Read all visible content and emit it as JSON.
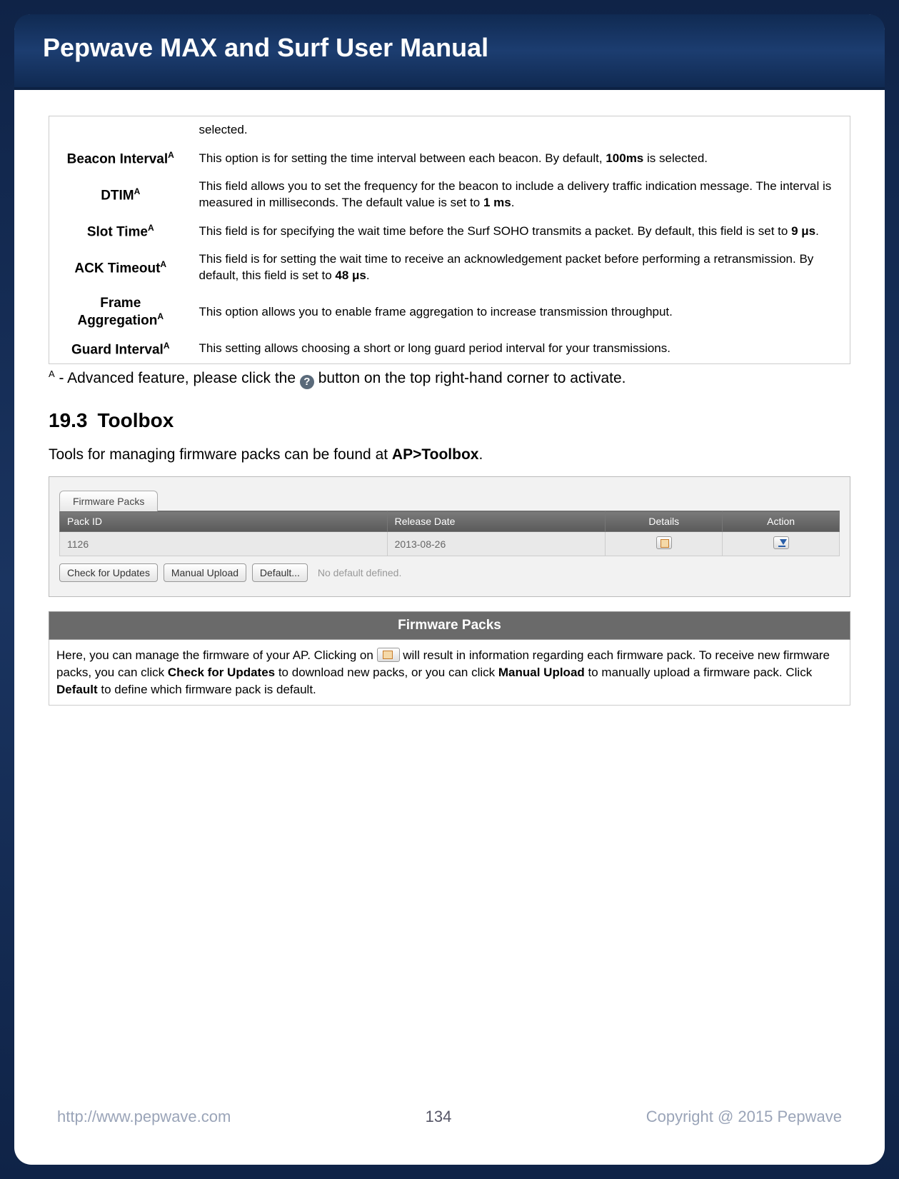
{
  "header": {
    "title": "Pepwave MAX and Surf User Manual"
  },
  "settings": {
    "row0": {
      "desc": "selected."
    },
    "rows": [
      {
        "label": "Beacon Interval",
        "sup": "A",
        "desc_pre": "This option is for setting the time interval between each beacon. By default, ",
        "bold1": "100ms",
        "desc_post": " is selected."
      },
      {
        "label": "DTIM",
        "sup": "A",
        "desc_pre": "This field allows you to set the frequency for the beacon to include a delivery traffic indication message. The interval is measured in milliseconds. The default value is set to ",
        "bold1": "1 ms",
        "desc_post": "."
      },
      {
        "label": "Slot Time",
        "sup": "A",
        "desc_pre": "This field is for specifying the wait time before the Surf SOHO transmits a packet. By default, this field is set to ",
        "bold1": "9 μs",
        "desc_post": "."
      },
      {
        "label": "ACK Timeout",
        "sup": "A",
        "desc_pre": "This field is for setting the wait time to receive an acknowledgement packet before performing a retransmission. By default, this field is set to ",
        "bold1": "48 μs",
        "desc_post": "."
      },
      {
        "label": "Frame Aggregation",
        "sup": "A",
        "desc_pre": "This option allows you to enable frame aggregation to increase transmission throughput.",
        "bold1": "",
        "desc_post": ""
      },
      {
        "label": "Guard Interval",
        "sup": "A",
        "desc_pre": "This setting allows choosing a short or long guard period interval for your transmissions.",
        "bold1": "",
        "desc_post": ""
      }
    ]
  },
  "footnote": {
    "sup": "A",
    "pre": " - Advanced feature, please click the ",
    "icon": "?",
    "post": " button on the top right-hand corner to activate."
  },
  "section": {
    "num": "19.3",
    "title": "Toolbox"
  },
  "intro": {
    "pre": "Tools for managing firmware packs can be found at ",
    "bold": "AP>Toolbox",
    "post": "."
  },
  "fw_shot": {
    "tab": "Firmware Packs",
    "headers": {
      "pack": "Pack ID",
      "date": "Release Date",
      "details": "Details",
      "action": "Action"
    },
    "row": {
      "pack": "1126",
      "date": "2013-08-26"
    },
    "buttons": {
      "check": "Check for Updates",
      "manual": "Manual Upload",
      "default": "Default..."
    },
    "no_default": "No default defined."
  },
  "fw_section": {
    "title": "Firmware Packs",
    "p1": "Here, you can manage the firmware of your AP. Clicking on ",
    "p2": " will result in information regarding each firmware pack. To receive new firmware packs, you can click ",
    "b1": "Check for Updates",
    "p3": " to download new packs, or you can click ",
    "b2": "Manual Upload",
    "p4": " to manually upload a firmware pack. Click ",
    "b3": "Default",
    "p5": " to define which firmware pack is default."
  },
  "footer": {
    "url": "http://www.pepwave.com",
    "page": "134",
    "copyright": "Copyright @ 2015 Pepwave"
  }
}
